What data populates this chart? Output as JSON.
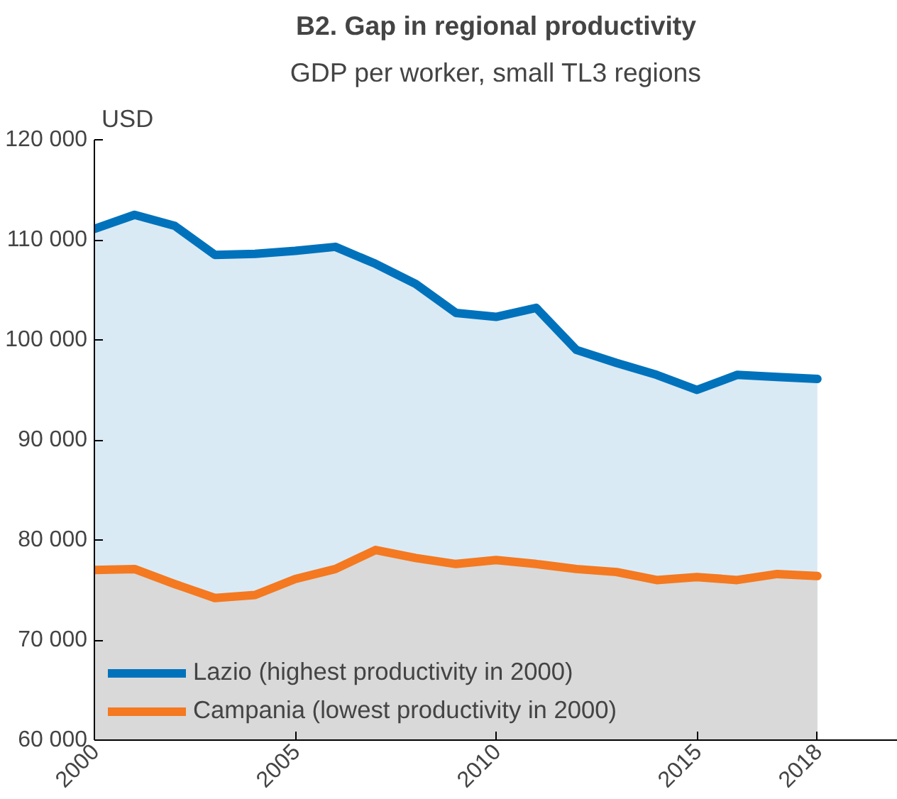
{
  "chart_data": {
    "type": "area",
    "title": "B2. Gap in regional productivity",
    "subtitle": "GDP per worker, small TL3 regions",
    "ylabel": "USD",
    "x": [
      2000,
      2001,
      2002,
      2003,
      2004,
      2005,
      2006,
      2007,
      2008,
      2009,
      2010,
      2011,
      2012,
      2013,
      2014,
      2015,
      2016,
      2017,
      2018
    ],
    "series": [
      {
        "name": "Lazio (highest productivity in 2000)",
        "color": "#0072bc",
        "values": [
          111100,
          112500,
          111400,
          108500,
          108600,
          108900,
          109300,
          107600,
          105600,
          102700,
          102300,
          103200,
          99000,
          97700,
          96500,
          95000,
          96500,
          96300,
          96100
        ]
      },
      {
        "name": "Campania (lowest productivity in 2000)",
        "color": "#f47920",
        "values": [
          77000,
          77100,
          75600,
          74200,
          74500,
          76100,
          77100,
          79000,
          78200,
          77600,
          78000,
          77600,
          77100,
          76800,
          76000,
          76300,
          76000,
          76600,
          76400
        ]
      }
    ],
    "xlim": [
      2000,
      2020
    ],
    "xticks": [
      2000,
      2005,
      2010,
      2015,
      2018
    ],
    "ylim": [
      60000,
      120000
    ],
    "yticks": [
      {
        "value": 60000,
        "label": "60 000"
      },
      {
        "value": 70000,
        "label": "70 000"
      },
      {
        "value": 80000,
        "label": "80 000"
      },
      {
        "value": 90000,
        "label": "90 000"
      },
      {
        "value": 100000,
        "label": "100 000"
      },
      {
        "value": 110000,
        "label": "110 000"
      },
      {
        "value": 120000,
        "label": "120 000"
      }
    ],
    "grid": false,
    "legend": "bottom left"
  }
}
